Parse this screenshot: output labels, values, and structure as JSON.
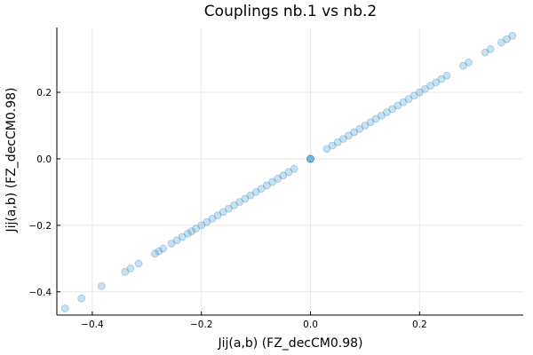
{
  "chart_data": {
    "type": "scatter",
    "title": "Couplings nb.1 vs nb.2",
    "xlabel": "Jij(a,b) (FZ_decCM0.98)",
    "ylabel": "Jij(a,b) (FZ_decCM0.98)",
    "xlim": [
      -0.465,
      0.39
    ],
    "ylim": [
      -0.47,
      0.395
    ],
    "xticks": [
      -0.4,
      -0.2,
      0.0,
      0.2
    ],
    "yticks": [
      -0.4,
      -0.2,
      0.0,
      0.2
    ],
    "xtick_labels": [
      "−0.4",
      "−0.2",
      "0.0",
      "0.2"
    ],
    "ytick_labels": [
      "−0.4",
      "−0.2",
      "0.0",
      "0.2"
    ],
    "grid": true,
    "legend": "none",
    "colors": {
      "marker_fill": "#0b8fd6",
      "marker_stroke": "#1a3f6b",
      "axis": "#000000",
      "grid": "#e8e8e8"
    },
    "series": [
      {
        "x": [
          -0.45,
          -0.42,
          -0.383,
          -0.34,
          -0.33,
          -0.315,
          -0.285,
          -0.278,
          -0.27,
          -0.255,
          -0.245,
          -0.235,
          -0.225,
          -0.218,
          -0.21,
          -0.2,
          -0.19,
          -0.18,
          -0.17,
          -0.16,
          -0.15,
          -0.14,
          -0.13,
          -0.12,
          -0.11,
          -0.1,
          -0.09,
          -0.08,
          -0.07,
          -0.06,
          -0.05,
          -0.04,
          -0.03,
          0.0,
          0.0,
          0.0,
          0.03,
          0.04,
          0.05,
          0.06,
          0.07,
          0.08,
          0.09,
          0.1,
          0.11,
          0.12,
          0.13,
          0.14,
          0.15,
          0.16,
          0.17,
          0.18,
          0.19,
          0.2,
          0.21,
          0.22,
          0.23,
          0.24,
          0.25,
          0.28,
          0.29,
          0.32,
          0.33,
          0.35,
          0.36,
          0.37
        ],
        "y": [
          -0.45,
          -0.42,
          -0.383,
          -0.34,
          -0.33,
          -0.315,
          -0.285,
          -0.278,
          -0.27,
          -0.255,
          -0.245,
          -0.235,
          -0.225,
          -0.218,
          -0.21,
          -0.2,
          -0.19,
          -0.18,
          -0.17,
          -0.16,
          -0.15,
          -0.14,
          -0.13,
          -0.12,
          -0.11,
          -0.1,
          -0.09,
          -0.08,
          -0.07,
          -0.06,
          -0.05,
          -0.04,
          -0.03,
          0.0,
          0.0,
          0.0,
          0.03,
          0.04,
          0.05,
          0.06,
          0.07,
          0.08,
          0.09,
          0.1,
          0.11,
          0.12,
          0.13,
          0.14,
          0.15,
          0.16,
          0.17,
          0.18,
          0.19,
          0.2,
          0.21,
          0.22,
          0.23,
          0.24,
          0.25,
          0.28,
          0.29,
          0.32,
          0.33,
          0.35,
          0.36,
          0.37
        ]
      }
    ]
  }
}
